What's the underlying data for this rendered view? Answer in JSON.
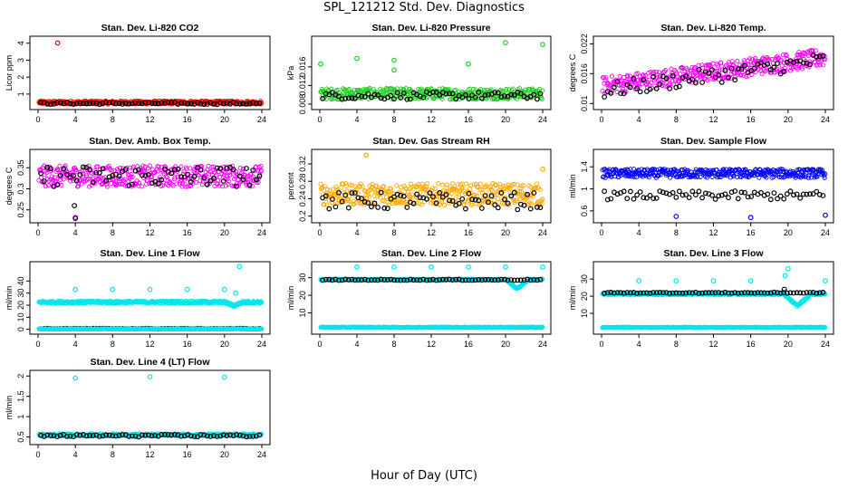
{
  "figure": {
    "title": "SPL_121212  Std. Dev. Diagnostics",
    "xlabel": "Hour of Day (UTC)"
  },
  "colors": {
    "black": "#000000",
    "red": "#ff0000",
    "green": "#22cc22",
    "magenta": "#ff00ff",
    "orange": "#ffaa00",
    "blue": "#0000ff",
    "cyan": "#00e5ee"
  },
  "chart_data": [
    {
      "type": "scatter",
      "title": "Stan. Dev. Li-820 CO2",
      "ylabel": "Licor ppm",
      "xlim": [
        0,
        24
      ],
      "ylim": [
        0.3,
        4.2
      ],
      "xticks": [
        0,
        4,
        8,
        12,
        16,
        20,
        24
      ],
      "yticks": [
        1,
        2,
        3,
        4
      ],
      "series": [
        {
          "color": "red",
          "dense": true,
          "x0": 0.1,
          "x1": 24,
          "base": 0.5,
          "spread": 0.1,
          "outliers": [
            [
              2.1,
              4.02
            ]
          ]
        },
        {
          "color": "black",
          "dense": false,
          "x0": 0.3,
          "x1": 24,
          "base": 0.45,
          "spread": 0.06
        }
      ]
    },
    {
      "type": "scatter",
      "title": "Stan. Dev. Li-820 Pressure",
      "ylabel": "kPa",
      "xlim": [
        0,
        24
      ],
      "ylim": [
        0.0076,
        0.0218
      ],
      "xticks": [
        0,
        4,
        8,
        12,
        16,
        20,
        24
      ],
      "yticks": [
        0.008,
        0.012,
        0.016
      ],
      "series": [
        {
          "color": "green",
          "dense": true,
          "x0": 0.1,
          "x1": 24,
          "base": 0.0102,
          "spread": 0.0012,
          "outliers": [
            [
              0.1,
              0.0166
            ],
            [
              4,
              0.0178
            ],
            [
              8,
              0.0174
            ],
            [
              8,
              0.0153
            ],
            [
              16,
              0.0166
            ],
            [
              20,
              0.0212
            ],
            [
              24,
              0.0208
            ]
          ]
        },
        {
          "color": "black",
          "dense": false,
          "x0": 0.3,
          "x1": 24,
          "base": 0.0098,
          "spread": 0.0008
        }
      ]
    },
    {
      "type": "scatter",
      "title": "Stan. Dev. Li-820 Temp.",
      "ylabel": "degrees C",
      "xlim": [
        0,
        24
      ],
      "ylim": [
        0.0095,
        0.0228
      ],
      "xticks": [
        0,
        4,
        8,
        12,
        16,
        20,
        24
      ],
      "yticks": [
        0.01,
        0.016,
        0.022
      ],
      "series": [
        {
          "color": "magenta",
          "dense": true,
          "x0": 0.1,
          "x1": 24,
          "base": 0.0135,
          "trend": 0.00024,
          "spread": 0.0018
        },
        {
          "color": "black",
          "dense": false,
          "x0": 0.3,
          "x1": 24,
          "base": 0.0125,
          "trend": 0.00026,
          "spread": 0.0016
        }
      ]
    },
    {
      "type": "scatter",
      "title": "Stan. Dev. Amb. Box Temp.",
      "ylabel": "degrees C",
      "xlim": [
        0,
        24
      ],
      "ylim": [
        0.228,
        0.385
      ],
      "xticks": [
        0,
        4,
        8,
        12,
        16,
        20,
        24
      ],
      "yticks": [
        0.25,
        0.3,
        0.35
      ],
      "series": [
        {
          "color": "magenta",
          "dense": true,
          "x0": 0.1,
          "x1": 24,
          "base": 0.33,
          "spread": 0.025,
          "outliers": [
            [
              4,
              0.232
            ]
          ]
        },
        {
          "color": "black",
          "dense": false,
          "x0": 0.3,
          "x1": 24,
          "base": 0.33,
          "spread": 0.025,
          "outliers": [
            [
              4,
              0.23
            ],
            [
              3.9,
              0.26
            ]
          ]
        }
      ]
    },
    {
      "type": "scatter",
      "title": "Stan. Dev. Gas Stream RH",
      "ylabel": "percent",
      "xlim": [
        0,
        24
      ],
      "ylim": [
        0.193,
        0.345
      ],
      "xticks": [
        0,
        4,
        8,
        12,
        16,
        20,
        24
      ],
      "yticks": [
        0.2,
        0.24,
        0.28,
        0.32
      ],
      "series": [
        {
          "color": "orange",
          "dense": true,
          "x0": 0.1,
          "x1": 24,
          "base": 0.25,
          "spread": 0.025,
          "outliers": [
            [
              5,
              0.34
            ],
            [
              24,
              0.308
            ]
          ]
        },
        {
          "color": "black",
          "dense": false,
          "x0": 0.3,
          "x1": 24,
          "base": 0.235,
          "spread": 0.02
        }
      ]
    },
    {
      "type": "scatter",
      "title": "Stan. Dev. Sample Flow",
      "ylabel": "ml/min",
      "xlim": [
        0,
        24
      ],
      "ylim": [
        0.45,
        1.65
      ],
      "xticks": [
        0,
        4,
        8,
        12,
        16,
        20,
        24
      ],
      "yticks": [
        0.6,
        1.0,
        1.4
      ],
      "series": [
        {
          "color": "blue",
          "dense": true,
          "x0": 0.1,
          "x1": 24,
          "base": 1.28,
          "spread": 0.08,
          "outliers": [
            [
              8,
              0.5
            ],
            [
              16,
              0.48
            ],
            [
              24,
              0.52
            ]
          ]
        },
        {
          "color": "black",
          "dense": false,
          "x0": 0.3,
          "x1": 24,
          "base": 0.88,
          "spread": 0.08
        }
      ]
    },
    {
      "type": "scatter",
      "title": "Stan. Dev. Line 1 Flow",
      "ylabel": "ml/min",
      "xlim": [
        0,
        24
      ],
      "ylim": [
        -1,
        53
      ],
      "xticks": [
        0,
        4,
        8,
        12,
        16,
        20,
        24
      ],
      "yticks": [
        0,
        10,
        20,
        30,
        40
      ],
      "series": [
        {
          "color": "cyan",
          "dense": true,
          "x0": 0.1,
          "x1": 24,
          "base": 22.5,
          "spread": 1.0,
          "dip": [
            20,
            22,
            3
          ],
          "outliers": [
            [
              4,
              33
            ],
            [
              8,
              33
            ],
            [
              12,
              33
            ],
            [
              16,
              33
            ],
            [
              20,
              33
            ],
            [
              21.6,
              52
            ],
            [
              21.2,
              30
            ]
          ]
        },
        {
          "color": "black",
          "dense": false,
          "x0": 0.3,
          "x1": 24,
          "base": 0.6,
          "spread": 0.2
        },
        {
          "color": "cyan",
          "dense": true,
          "x0": 0.1,
          "x1": 24,
          "base": 0.3,
          "spread": 0.2
        }
      ]
    },
    {
      "type": "scatter",
      "title": "Stan. Dev. Line 2 Flow",
      "ylabel": "ml/min",
      "xlim": [
        0,
        24
      ],
      "ylim": [
        0,
        37
      ],
      "xticks": [
        0,
        4,
        8,
        12,
        16,
        20,
        24
      ],
      "yticks": [
        10,
        20,
        30
      ],
      "series": [
        {
          "color": "cyan",
          "dense": true,
          "x0": 0.1,
          "x1": 24,
          "base": 28.8,
          "spread": 0.4,
          "dip": [
            20,
            22.5,
            5
          ],
          "outliers": [
            [
              4,
              36
            ],
            [
              8,
              36
            ],
            [
              12,
              36
            ],
            [
              16,
              36
            ],
            [
              20,
              36
            ],
            [
              24,
              36
            ]
          ]
        },
        {
          "color": "black",
          "dense": false,
          "x0": 0.3,
          "x1": 24,
          "base": 28.8,
          "spread": 0.3
        },
        {
          "color": "cyan",
          "dense": true,
          "x0": 0.1,
          "x1": 24,
          "base": 1.8,
          "spread": 0.2
        }
      ]
    },
    {
      "type": "scatter",
      "title": "Stan. Dev. Line 3 Flow",
      "ylabel": "ml/min",
      "xlim": [
        0,
        24
      ],
      "ylim": [
        0,
        38
      ],
      "xticks": [
        0,
        4,
        8,
        12,
        16,
        20,
        24
      ],
      "yticks": [
        10,
        20,
        30
      ],
      "series": [
        {
          "color": "cyan",
          "dense": true,
          "x0": 0.1,
          "x1": 24,
          "base": 21.3,
          "spread": 0.5,
          "dip": [
            19.5,
            22.5,
            7
          ],
          "outliers": [
            [
              4,
              29
            ],
            [
              8,
              29
            ],
            [
              12,
              29
            ],
            [
              16,
              29
            ],
            [
              20,
              36
            ],
            [
              19.7,
              32
            ],
            [
              24,
              29
            ]
          ]
        },
        {
          "color": "black",
          "dense": false,
          "x0": 0.3,
          "x1": 24,
          "base": 22.0,
          "spread": 0.3,
          "outliers": [
            [
              19.6,
              24
            ]
          ]
        },
        {
          "color": "cyan",
          "dense": true,
          "x0": 0.1,
          "x1": 24,
          "base": 1.8,
          "spread": 0.2
        }
      ]
    },
    {
      "type": "scatter",
      "title": "Stan. Dev. Line 4 (LT) Flow",
      "ylabel": "ml/min",
      "xlim": [
        0,
        24
      ],
      "ylim": [
        0.4,
        2.05
      ],
      "xticks": [
        0,
        4,
        8,
        12,
        16,
        20,
        24
      ],
      "yticks": [
        0.5,
        1.0,
        1.5,
        2.0
      ],
      "series": [
        {
          "color": "cyan",
          "dense": true,
          "x0": 0.1,
          "x1": 24,
          "base": 0.55,
          "spread": 0.03,
          "outliers": [
            [
              4,
              1.95
            ],
            [
              12,
              1.98
            ],
            [
              20,
              1.97
            ]
          ]
        },
        {
          "color": "black",
          "dense": false,
          "x0": 0.3,
          "x1": 24,
          "base": 0.53,
          "spread": 0.03
        }
      ]
    }
  ]
}
